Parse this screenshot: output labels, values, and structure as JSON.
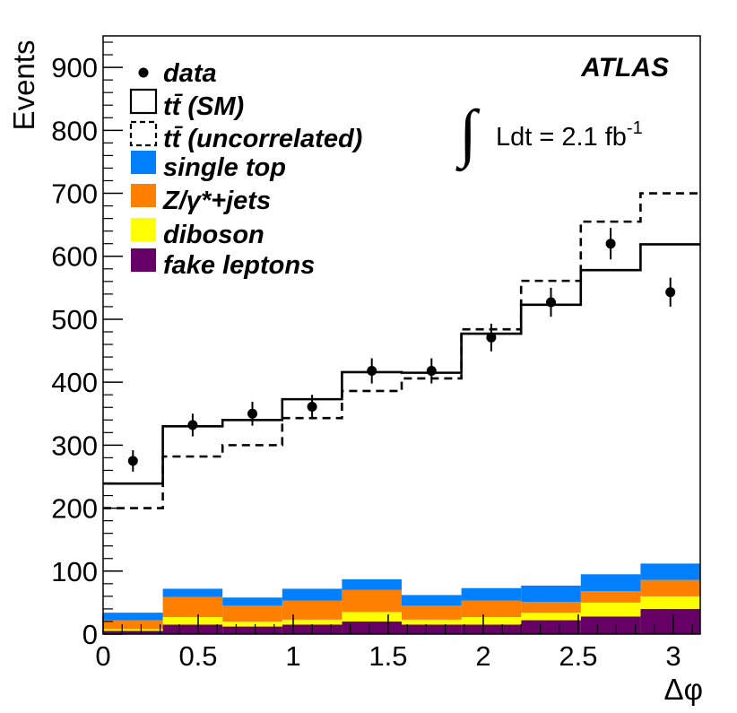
{
  "chart_data": {
    "type": "bar",
    "title": "",
    "xlabel": "Δφ",
    "ylabel": "Events",
    "xlim": [
      0,
      3.14159
    ],
    "ylim": [
      0,
      950
    ],
    "x_ticks": [
      "0",
      "0.5",
      "1",
      "1.5",
      "2",
      "2.5",
      "3"
    ],
    "x_tick_values": [
      0,
      0.5,
      1,
      1.5,
      2,
      2.5,
      3
    ],
    "y_ticks": [
      "0",
      "100",
      "200",
      "300",
      "400",
      "500",
      "600",
      "700",
      "800",
      "900"
    ],
    "y_tick_values": [
      0,
      100,
      200,
      300,
      400,
      500,
      600,
      700,
      800,
      900
    ],
    "n_bins": 10,
    "stacked_series": [
      {
        "name": "fake leptons",
        "color": "#660066",
        "values": [
          5,
          15,
          12,
          15,
          20,
          15,
          15,
          22,
          28,
          40
        ]
      },
      {
        "name": "diboson",
        "color": "#ffff00",
        "values": [
          3,
          12,
          8,
          8,
          15,
          8,
          12,
          12,
          22,
          20
        ]
      },
      {
        "name": "Z/γ*+jets",
        "color": "#ff7f00",
        "values": [
          14,
          32,
          25,
          30,
          35,
          22,
          26,
          17,
          18,
          26
        ]
      },
      {
        "name": "single top",
        "color": "#0080ff",
        "values": [
          12,
          13,
          13,
          19,
          17,
          17,
          20,
          26,
          27,
          26
        ]
      }
    ],
    "line_series": [
      {
        "name": "tt̄ (SM)",
        "style": "solid",
        "values": [
          239,
          330,
          340,
          373,
          416,
          415,
          477,
          523,
          578,
          619
        ]
      },
      {
        "name": "tt̄ (uncorrelated)",
        "style": "dashed",
        "values": [
          200,
          282,
          300,
          343,
          386,
          406,
          484,
          561,
          655,
          700
        ]
      }
    ],
    "data_points": {
      "name": "data",
      "values": [
        275,
        332,
        350,
        361,
        418,
        418,
        471,
        527,
        620,
        543
      ],
      "errors": [
        17,
        18,
        19,
        19,
        20,
        20,
        22,
        23,
        25,
        23
      ]
    },
    "legend": [
      {
        "label_main": "data",
        "kind": "marker"
      },
      {
        "label_main": "tt̄ (SM)",
        "kind": "solid-box"
      },
      {
        "label_main": "tt̄ (uncorrelated)",
        "kind": "dashed-box"
      },
      {
        "label_main": "single top",
        "kind": "fill",
        "color": "#0080ff"
      },
      {
        "label_main": "Z/γ*+jets",
        "kind": "fill",
        "color": "#ff7f00"
      },
      {
        "label_main": "diboson",
        "kind": "fill",
        "color": "#ffff00"
      },
      {
        "label_main": "fake leptons",
        "kind": "fill",
        "color": "#660066"
      }
    ],
    "legend_position": "top-left",
    "annotations": {
      "experiment": "ATLAS",
      "integral": "∫",
      "lumi_text": "Ldt = 2.1 fb",
      "lumi_exp": "-1"
    },
    "grid": false
  }
}
